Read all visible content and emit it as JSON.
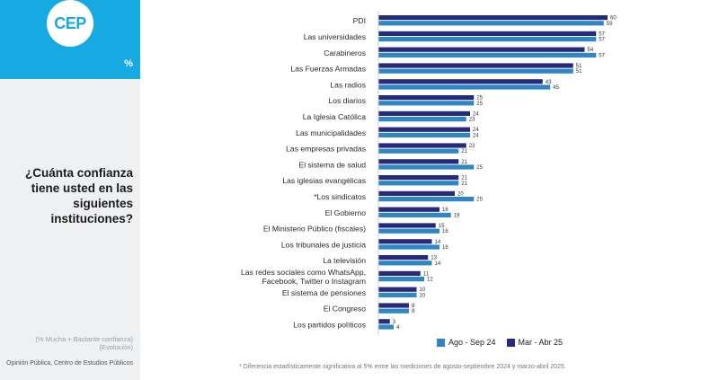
{
  "brand": {
    "logo": "CEP",
    "badge": "%"
  },
  "question": "¿Cuánta confianza tiene usted en las siguientes instituciones?",
  "subtitle": "(% Mucha + Bastante confianza) (Evolución)",
  "source": "Opinión Pública, Centro de Estudios Públicos",
  "footnote": "* Diferencia estadísticamente significativa al 5% entre las mediciones de agosto-septiembre 2024 y marzo-abril 2025.",
  "colors": {
    "accent": "#17a9e1",
    "series_recent": "#262a7a",
    "series_prior": "#2f86c4"
  },
  "chart_data": {
    "type": "bar",
    "orientation": "horizontal",
    "categories": [
      "PDI",
      "Las universidades",
      "Carabineros",
      "Las Fuerzas Armadas",
      "Las radios",
      "Los diarios",
      "La Iglesia Católica",
      "Las municipalidades",
      "Las empresas privadas",
      "El sistema de salud",
      "Las iglesias evangélicas",
      "*Los sindicatos",
      "El Gobierno",
      "El Ministerio Público (fiscales)",
      "Los tribunales de justicia",
      "La televisión",
      "Las redes sociales como WhatsApp, Facebook, Twitter o Instagram",
      "El sistema de pensiones",
      "El Congreso",
      "Los partidos políticos"
    ],
    "series": [
      {
        "name": "Mar - Abr 25",
        "values": [
          60,
          57,
          54,
          51,
          43,
          25,
          24,
          24,
          23,
          21,
          21,
          20,
          16,
          15,
          14,
          13,
          11,
          10,
          8,
          3
        ]
      },
      {
        "name": "Ago - Sep 24",
        "values": [
          59,
          57,
          57,
          51,
          45,
          25,
          23,
          24,
          21,
          25,
          21,
          25,
          19,
          16,
          16,
          14,
          12,
          10,
          8,
          4
        ]
      }
    ],
    "xlim": [
      0,
      60
    ],
    "grid": false,
    "legend": "bottom",
    "legend_order": [
      "Ago - Sep 24",
      "Mar - Abr 25"
    ]
  }
}
